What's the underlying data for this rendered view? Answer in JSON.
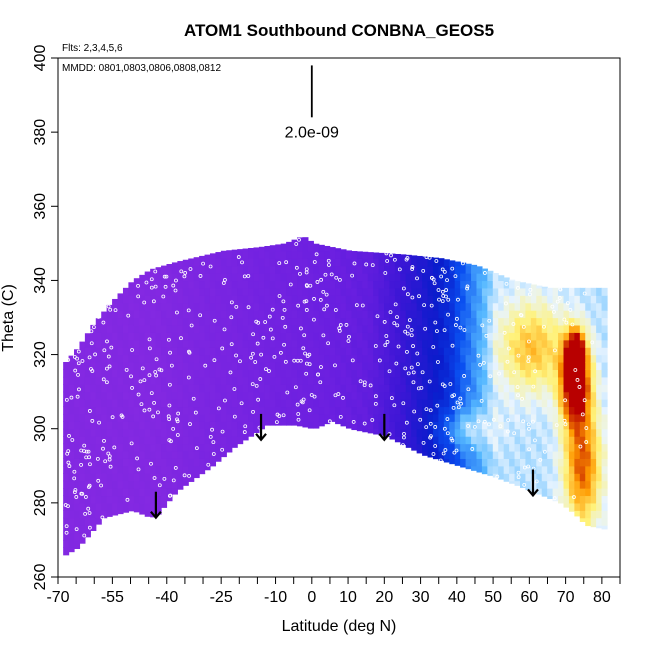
{
  "chart_data": {
    "type": "heatmap",
    "title": "ATOM1 Southbound CONBNA_GEOS5",
    "flights_note": "Flts: 2,3,4,5,6",
    "dates_note": "MMDD: 0801,0803,0806,0808,0812",
    "xlabel": "Latitude (deg N)",
    "ylabel": "Theta (C)",
    "xlim": [
      -70,
      85
    ],
    "ylim": [
      260,
      400
    ],
    "x_tick_labels": [
      "-70",
      "-55",
      "-40",
      "-25",
      "-10",
      "0",
      "10",
      "20",
      "30",
      "40",
      "50",
      "60",
      "70",
      "80"
    ],
    "x_tick_values": [
      -70,
      -55,
      -40,
      -25,
      -10,
      0,
      10,
      20,
      30,
      40,
      50,
      60,
      70,
      80
    ],
    "x_minor_ticks": [
      -65,
      -60,
      -50,
      -45,
      -35,
      -30,
      -20,
      -15,
      -5,
      5,
      15,
      25,
      35,
      45,
      55,
      65,
      75,
      85
    ],
    "y_tick_labels": [
      "260",
      "280",
      "300",
      "320",
      "340",
      "360",
      "380",
      "400"
    ],
    "y_tick_values": [
      260,
      280,
      300,
      320,
      340,
      360,
      380,
      400
    ],
    "scale_bar": {
      "label": "2.0e-09",
      "x": 0,
      "y_top": 398,
      "y_bottom": 384
    },
    "arrows": [
      {
        "lat": -43,
        "theta_top": 283,
        "theta_bottom": 276
      },
      {
        "lat": -14,
        "theta_top": 304,
        "theta_bottom": 297
      },
      {
        "lat": 20,
        "theta_top": 304,
        "theta_bottom": 297
      },
      {
        "lat": 61,
        "theta_top": 289,
        "theta_bottom": 282
      }
    ],
    "field": {
      "x_start": -68.5,
      "x_end": 80,
      "x_step": 1.5,
      "y_start": 265,
      "y_step": 2,
      "top_envelope": [
        [
          -68.5,
          318
        ],
        [
          -65,
          322
        ],
        [
          -61,
          328
        ],
        [
          -56,
          334
        ],
        [
          -50,
          340
        ],
        [
          -45,
          343
        ],
        [
          -38,
          345
        ],
        [
          -25,
          348
        ],
        [
          -15,
          349
        ],
        [
          -8,
          350
        ],
        [
          -3,
          352
        ],
        [
          0,
          350
        ],
        [
          10,
          348
        ],
        [
          25,
          347
        ],
        [
          35,
          346
        ],
        [
          45,
          344
        ],
        [
          50,
          342
        ],
        [
          55,
          340
        ],
        [
          65,
          338
        ],
        [
          78,
          338
        ],
        [
          80,
          338
        ]
      ],
      "bottom_envelope": [
        [
          -68.5,
          266
        ],
        [
          -65,
          268
        ],
        [
          -58,
          276
        ],
        [
          -50,
          278
        ],
        [
          -45,
          276
        ],
        [
          -43,
          277
        ],
        [
          -38,
          283
        ],
        [
          -28,
          290
        ],
        [
          -22,
          295
        ],
        [
          -16,
          299
        ],
        [
          -13,
          301
        ],
        [
          -5,
          301
        ],
        [
          0,
          300
        ],
        [
          5,
          302
        ],
        [
          10,
          300
        ],
        [
          20,
          298
        ],
        [
          30,
          293
        ],
        [
          40,
          290
        ],
        [
          50,
          287
        ],
        [
          58,
          284
        ],
        [
          63,
          282
        ],
        [
          68,
          280
        ],
        [
          72,
          277
        ],
        [
          75,
          274
        ],
        [
          80,
          273
        ]
      ]
    },
    "colormap": [
      [
        0.0,
        "#8a2be2"
      ],
      [
        0.25,
        "#6a1fe0"
      ],
      [
        0.42,
        "#3d16d6"
      ],
      [
        0.55,
        "#0a1ccc"
      ],
      [
        0.65,
        "#0a4ff0"
      ],
      [
        0.74,
        "#55b8ff"
      ],
      [
        0.8,
        "#e8f4ff"
      ],
      [
        0.86,
        "#fff27a"
      ],
      [
        0.93,
        "#ff9a00"
      ],
      [
        1.0,
        "#b80000"
      ]
    ]
  }
}
